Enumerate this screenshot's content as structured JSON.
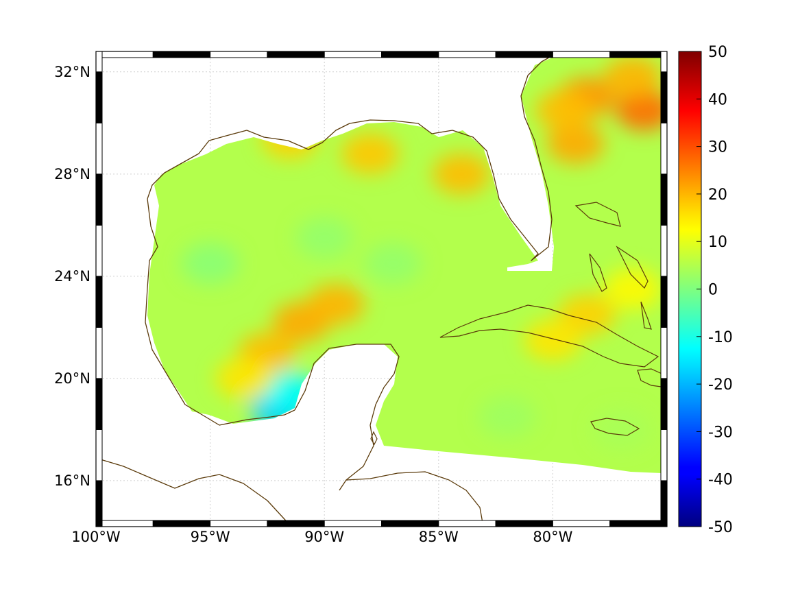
{
  "chart_data": {
    "type": "heatmap",
    "title": "",
    "xlabel": "",
    "ylabel": "",
    "xlim": [
      -100,
      -75
    ],
    "ylim": [
      14.2,
      32.8
    ],
    "xticks": [
      {
        "value": -100,
        "label": "100°W"
      },
      {
        "value": -95,
        "label": "95°W"
      },
      {
        "value": -90,
        "label": "90°W"
      },
      {
        "value": -85,
        "label": "85°W"
      },
      {
        "value": -80,
        "label": "80°W"
      }
    ],
    "yticks": [
      {
        "value": 16,
        "label": "16°N"
      },
      {
        "value": 20,
        "label": "20°N"
      },
      {
        "value": 24,
        "label": "24°N"
      },
      {
        "value": 28,
        "label": "28°N"
      },
      {
        "value": 32,
        "label": "32°N"
      }
    ],
    "grid": true,
    "colormap": "jet",
    "clim": [
      -50,
      50
    ],
    "colorbar_ticks": [
      "50",
      "40",
      "30",
      "20",
      "10",
      "0",
      "-10",
      "-20",
      "-30",
      "-40",
      "-50"
    ],
    "background_value": 5,
    "anomalies": [
      {
        "lon": -91.0,
        "lat": 22.2,
        "value": 21
      },
      {
        "lon": -89.5,
        "lat": 22.9,
        "value": 20
      },
      {
        "lon": -92.5,
        "lat": 21.0,
        "value": 19
      },
      {
        "lon": -92.0,
        "lat": 18.8,
        "value": -17
      },
      {
        "lon": -91.5,
        "lat": 19.5,
        "value": -12
      },
      {
        "lon": -88.0,
        "lat": 28.8,
        "value": 18
      },
      {
        "lon": -91.5,
        "lat": 29.4,
        "value": 17
      },
      {
        "lon": -84.0,
        "lat": 28.0,
        "value": 19
      },
      {
        "lon": -78.5,
        "lat": 31.0,
        "value": 23
      },
      {
        "lon": -76.0,
        "lat": 30.5,
        "value": 27
      },
      {
        "lon": -79.0,
        "lat": 29.2,
        "value": 21
      },
      {
        "lon": -76.5,
        "lat": 31.8,
        "value": 20
      },
      {
        "lon": -79.5,
        "lat": 30.5,
        "value": 19
      },
      {
        "lon": -93.5,
        "lat": 20.0,
        "value": 15
      },
      {
        "lon": -95.0,
        "lat": 24.5,
        "value": 1
      },
      {
        "lon": -90.0,
        "lat": 25.5,
        "value": 2
      },
      {
        "lon": -87.0,
        "lat": 24.5,
        "value": 2
      },
      {
        "lon": -78.5,
        "lat": 22.5,
        "value": 17
      },
      {
        "lon": -80.0,
        "lat": 21.5,
        "value": 15
      },
      {
        "lon": -76.5,
        "lat": 23.5,
        "value": 13
      },
      {
        "lon": -82.0,
        "lat": 18.5,
        "value": 3
      },
      {
        "lon": -77.0,
        "lat": 18.0,
        "value": 4
      }
    ]
  },
  "colors": {
    "coastline": "#5a3a0a",
    "grid": "#cfcfcf",
    "frame": "#000000"
  }
}
